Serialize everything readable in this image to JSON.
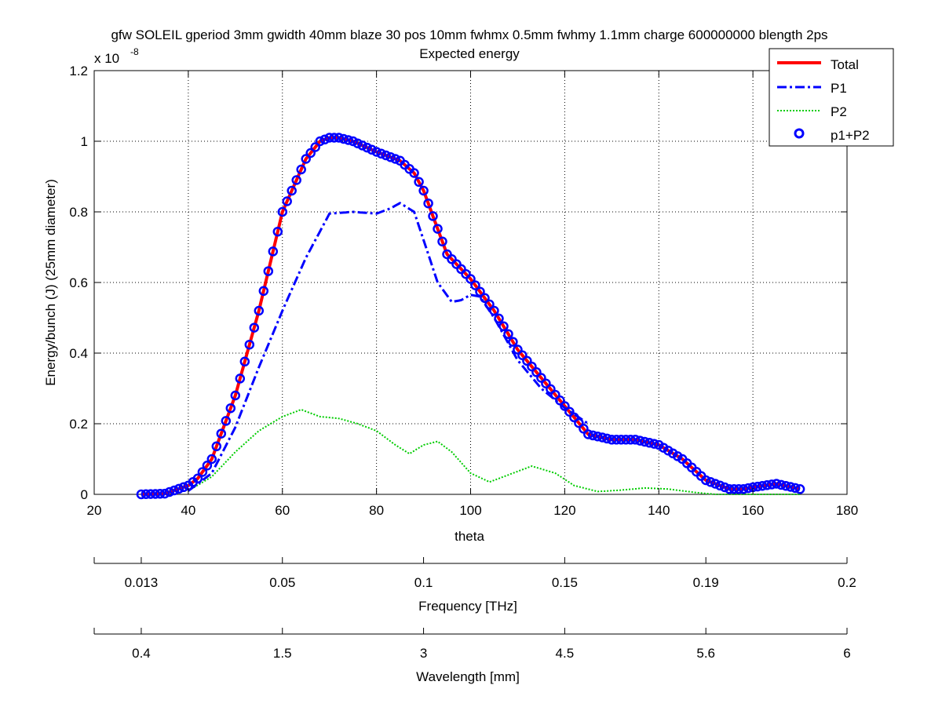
{
  "chart_data": {
    "type": "line",
    "title": "gfw SOLEIL gperiod 3mm gwidth 40mm blaze 30 pos 10mm fwhmx 0.5mm fwhmy 1.1mm charge 600000000 blength 2ps",
    "subtitle": "Expected energy",
    "xlabel": "theta",
    "ylabel": "Energy/bunch (J) (25mm diameter)",
    "y_exponent_label": "x 10",
    "y_exponent_power": "-8",
    "xlim": [
      20,
      180
    ],
    "ylim": [
      0,
      1.2
    ],
    "x_ticks": [
      20,
      40,
      60,
      80,
      100,
      120,
      140,
      160,
      180
    ],
    "y_ticks": [
      0,
      0.2,
      0.4,
      0.6,
      0.8,
      1,
      1.2
    ],
    "grid": true,
    "legend_position": "top-right",
    "series": [
      {
        "name": "Total",
        "color": "#ff0000",
        "style": "solid",
        "x": [
          30,
          35,
          40,
          42,
          45,
          50,
          55,
          60,
          65,
          68,
          70,
          72,
          75,
          80,
          85,
          88,
          90,
          95,
          100,
          105,
          110,
          115,
          120,
          125,
          130,
          135,
          140,
          145,
          150,
          155,
          158,
          160,
          165,
          170
        ],
        "y": [
          0,
          0.002,
          0.025,
          0.045,
          0.1,
          0.28,
          0.52,
          0.8,
          0.95,
          1.0,
          1.01,
          1.01,
          1.0,
          0.97,
          0.945,
          0.91,
          0.86,
          0.68,
          0.61,
          0.52,
          0.41,
          0.33,
          0.25,
          0.17,
          0.155,
          0.155,
          0.14,
          0.1,
          0.04,
          0.015,
          0.015,
          0.02,
          0.03,
          0.015
        ]
      },
      {
        "name": "P1",
        "color": "#0000ff",
        "style": "dashdot",
        "x": [
          40,
          45,
          50,
          55,
          60,
          65,
          70,
          75,
          80,
          83,
          85,
          88,
          90,
          93,
          96,
          98,
          100,
          102,
          105,
          110,
          115,
          120,
          125
        ],
        "y": [
          0.01,
          0.06,
          0.19,
          0.36,
          0.52,
          0.67,
          0.795,
          0.8,
          0.795,
          0.81,
          0.825,
          0.8,
          0.72,
          0.6,
          0.545,
          0.55,
          0.565,
          0.56,
          0.5,
          0.38,
          0.3,
          0.245,
          0.2
        ]
      },
      {
        "name": "P2",
        "color": "#00cc00",
        "style": "dotted",
        "x": [
          40,
          45,
          50,
          55,
          60,
          64,
          68,
          72,
          76,
          80,
          84,
          87,
          90,
          93,
          96,
          100,
          104,
          108,
          113,
          118,
          122,
          127,
          132,
          137,
          142,
          148,
          152,
          155,
          160,
          165,
          170
        ],
        "y": [
          0.01,
          0.05,
          0.12,
          0.18,
          0.22,
          0.24,
          0.22,
          0.215,
          0.2,
          0.18,
          0.14,
          0.115,
          0.14,
          0.15,
          0.12,
          0.06,
          0.035,
          0.055,
          0.08,
          0.06,
          0.025,
          0.008,
          0.012,
          0.018,
          0.015,
          0.005,
          0.0,
          0.0,
          0.0,
          0.0,
          0.0
        ]
      },
      {
        "name": "p1+P2",
        "color": "#0000ff",
        "style": "markers",
        "marker_step": 1
      }
    ],
    "secondary_axes": [
      {
        "label": "Frequency [THz]",
        "tick_labels": [
          "0.013",
          "0.05",
          "0.1",
          "0.15",
          "0.19",
          "0.2"
        ],
        "tick_theta": [
          30,
          60,
          90,
          120,
          150,
          180
        ]
      },
      {
        "label": "Wavelength [mm]",
        "tick_labels": [
          "0.4",
          "1.5",
          "3",
          "4.5",
          "5.6",
          "6"
        ],
        "tick_theta": [
          30,
          60,
          90,
          120,
          150,
          180
        ]
      }
    ],
    "legend": {
      "entries": [
        "Total",
        "P1",
        "P2",
        "p1+P2"
      ]
    }
  }
}
